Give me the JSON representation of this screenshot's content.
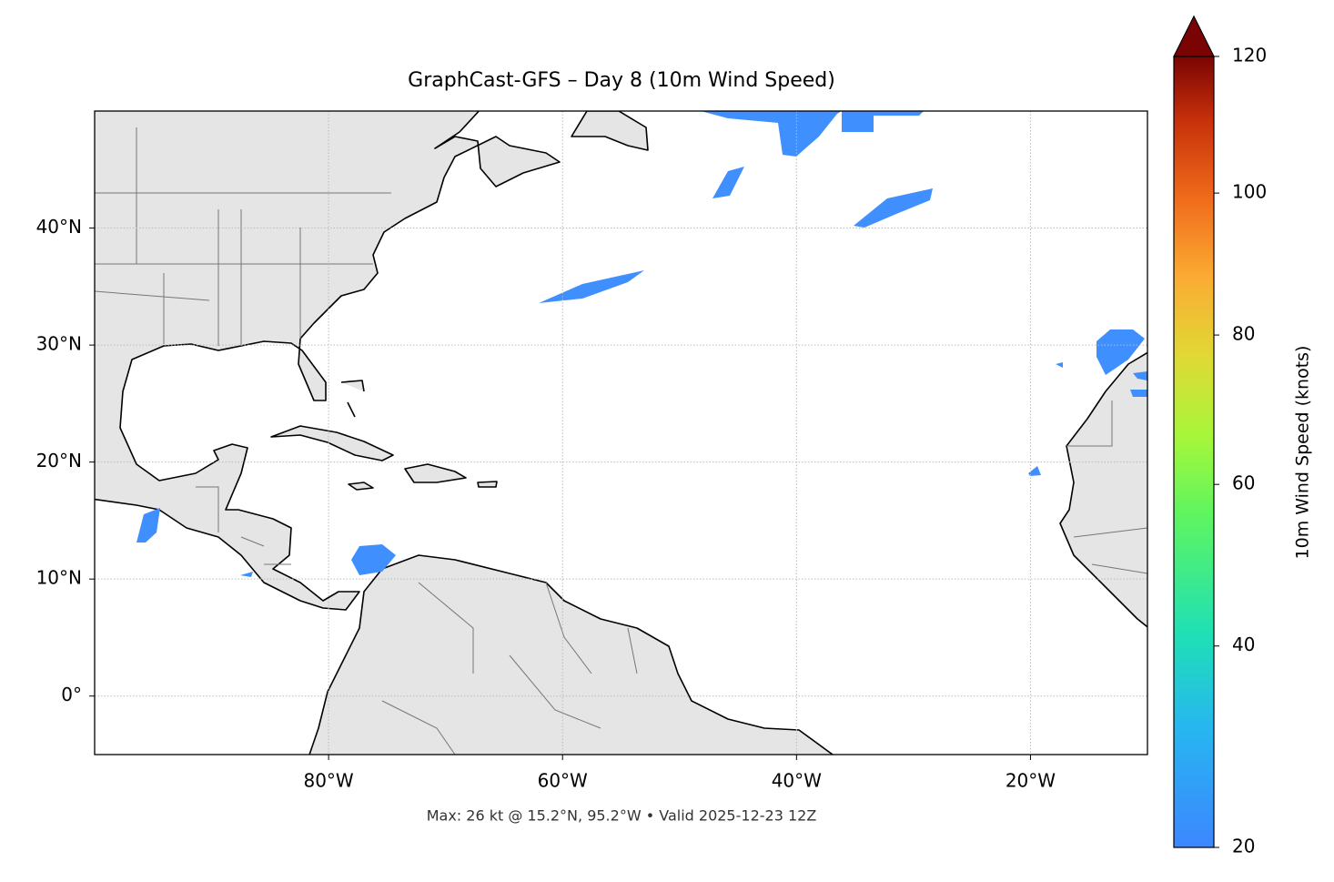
{
  "map": {
    "title": "GraphCast-GFS – Day 8 (10m Wind Speed)",
    "subtitle": "Max: 26 kt @ 15.2°N, 95.2°W • Valid 2025-12-23 12Z",
    "lonlim": [
      -100,
      -10
    ],
    "latlim": [
      -5,
      50
    ],
    "lonticks": [
      {
        "value": -80,
        "label": "80°W"
      },
      {
        "value": -60,
        "label": "60°W"
      },
      {
        "value": -40,
        "label": "40°W"
      },
      {
        "value": -20,
        "label": "20°W"
      }
    ],
    "latticks": [
      {
        "value": 0,
        "label": "0°"
      },
      {
        "value": 10,
        "label": "10°N"
      },
      {
        "value": 20,
        "label": "20°N"
      },
      {
        "value": 30,
        "label": "30°N"
      },
      {
        "value": 40,
        "label": "40°N"
      }
    ],
    "grid": true
  },
  "colorbar": {
    "label": "10m Wind Speed (knots)",
    "lim": [
      20,
      120
    ],
    "ticks": [
      20,
      40,
      60,
      80,
      100,
      120
    ],
    "gamma": 0.85,
    "extend": "max"
  }
}
